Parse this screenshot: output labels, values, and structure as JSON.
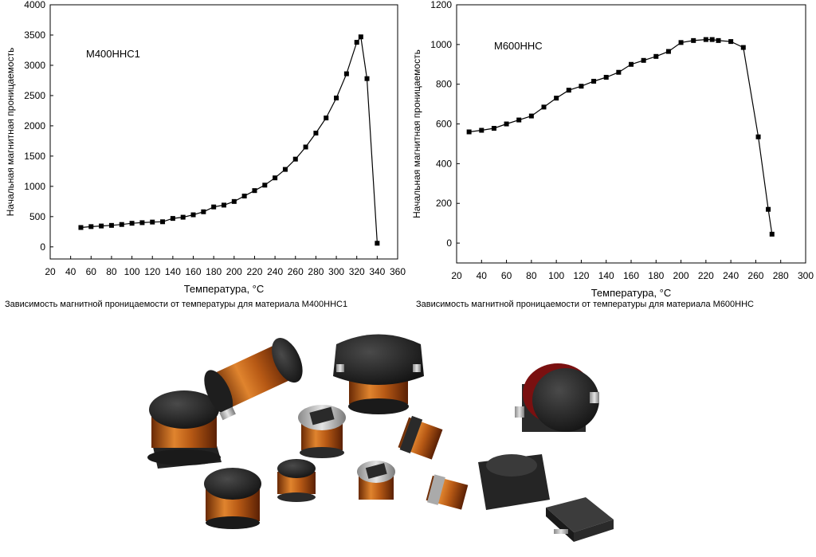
{
  "chart_data": [
    {
      "type": "line",
      "annotation": "M400HHC1",
      "xlabel": "Температура, °C",
      "ylabel": "Начальная магнитная проницаемость",
      "xlim": [
        20,
        360
      ],
      "ylim": [
        -200,
        4000
      ],
      "xticks": [
        20,
        40,
        60,
        80,
        100,
        120,
        140,
        160,
        180,
        200,
        220,
        240,
        260,
        280,
        300,
        320,
        340,
        360
      ],
      "yticks": [
        0,
        500,
        1000,
        1500,
        2000,
        2500,
        3000,
        3500,
        4000
      ],
      "grid": false,
      "marker": "square",
      "series": [
        {
          "x": [
            50,
            60,
            70,
            80,
            90,
            100,
            110,
            120,
            130,
            140,
            150,
            160,
            170,
            180,
            190,
            200,
            210,
            220,
            230,
            240,
            250,
            260,
            270,
            280,
            290,
            300,
            310,
            320,
            324,
            330,
            340
          ],
          "y": [
            320,
            335,
            345,
            355,
            370,
            390,
            400,
            410,
            415,
            470,
            490,
            530,
            580,
            660,
            690,
            750,
            840,
            930,
            1020,
            1140,
            1280,
            1450,
            1650,
            1880,
            2130,
            2460,
            2860,
            3380,
            3470,
            2780,
            60
          ]
        }
      ]
    },
    {
      "type": "line",
      "annotation": "M600HHC",
      "xlabel": "Температура, °C",
      "ylabel": "Начальная магнитная проницаемость",
      "xlim": [
        20,
        300
      ],
      "ylim": [
        -100,
        1200
      ],
      "xticks": [
        20,
        40,
        60,
        80,
        100,
        120,
        140,
        160,
        180,
        200,
        220,
        240,
        260,
        280,
        300
      ],
      "yticks": [
        0,
        200,
        400,
        600,
        800,
        1000,
        1200
      ],
      "grid": false,
      "marker": "square",
      "series": [
        {
          "x": [
            30,
            40,
            50,
            60,
            70,
            80,
            90,
            100,
            110,
            120,
            130,
            140,
            150,
            160,
            170,
            180,
            190,
            200,
            210,
            220,
            225,
            230,
            240,
            250,
            262,
            270,
            273
          ],
          "y": [
            560,
            568,
            578,
            600,
            620,
            640,
            685,
            730,
            770,
            790,
            815,
            835,
            860,
            900,
            920,
            940,
            965,
            1010,
            1020,
            1025,
            1025,
            1020,
            1015,
            985,
            535,
            170,
            45
          ]
        }
      ]
    }
  ],
  "captions": {
    "left": "Зависимость магнитной проницаемости от температуры для материала M400HHC1",
    "right": "Зависимость магнитной проницаемости от температуры для материала M600HHC"
  },
  "photo": {
    "description_icon": "inductors-photo-icon"
  }
}
